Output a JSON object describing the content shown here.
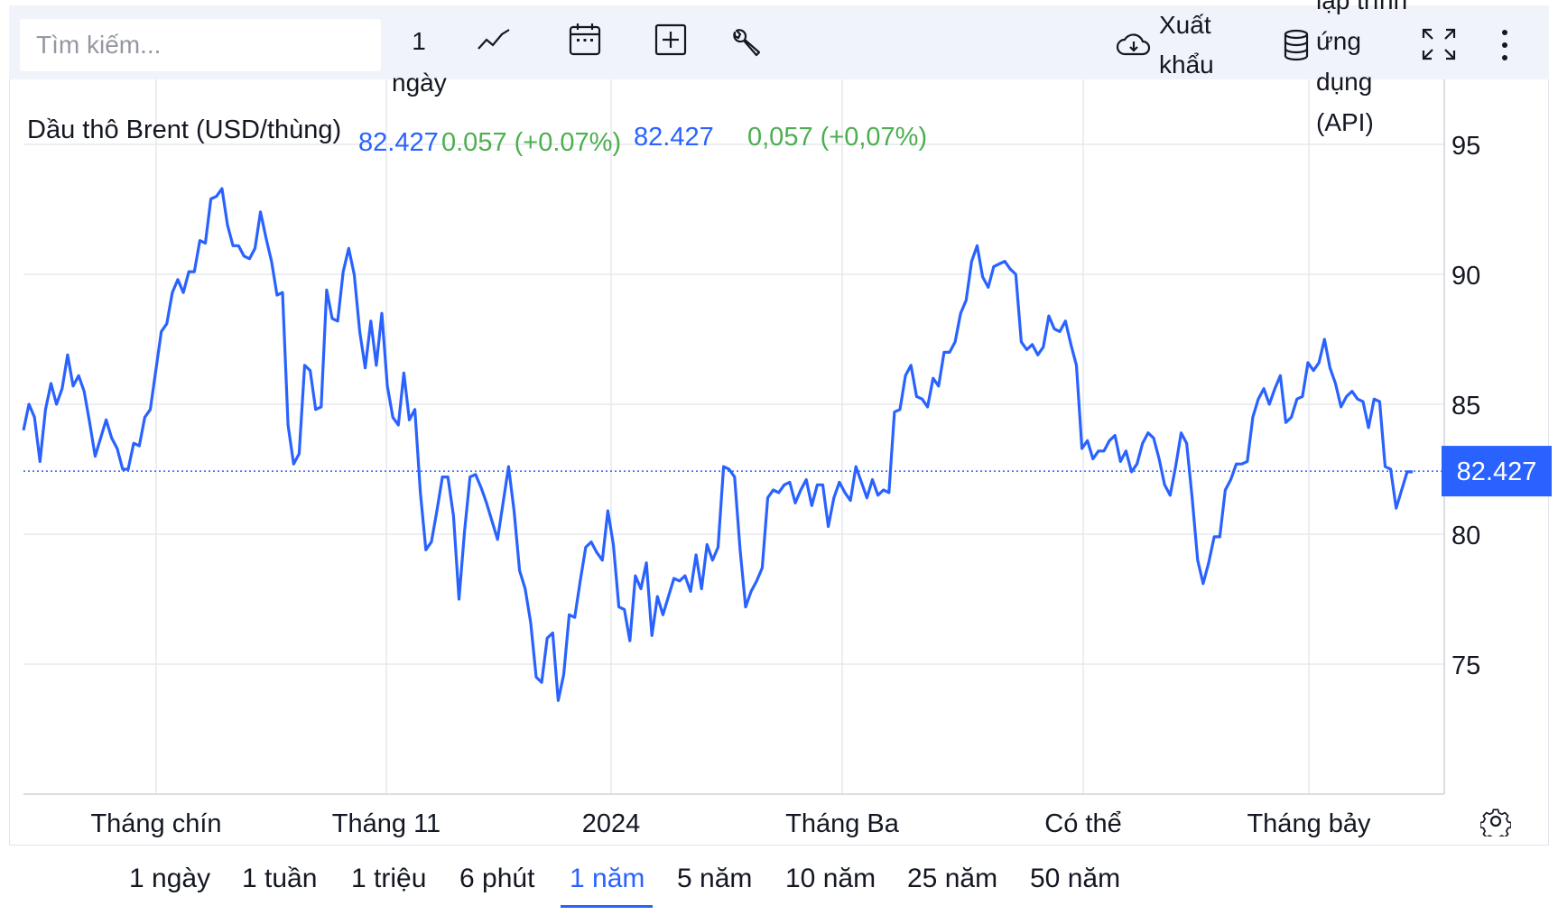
{
  "toolbar": {
    "search_placeholder": "Tìm kiếm...",
    "interval_label": "1 ngày",
    "line_icon": "line-chart-icon",
    "calendar_icon": "calendar-icon",
    "compare_icon": "plus-square-icon",
    "indicators_icon": "wrench-icon",
    "export_label": "Xuất khẩu",
    "api_label": "lập trình ứng dụng (API)",
    "fullscreen_icon": "fullscreen-icon",
    "more_icon": "more-vertical-icon"
  },
  "legend": {
    "title": "Dầu thô Brent (USD/thùng)",
    "value": "82.427",
    "change": "0.057 (+0.07%)",
    "value2": "82.427",
    "change2": "0,057 (+0,07%)"
  },
  "price_tag": "82.427",
  "ranges": [
    "1 ngày",
    "1 tuần",
    "1 triệu",
    "6 phút",
    "1 năm",
    "5 năm",
    "10 năm",
    "25 năm",
    "50 năm"
  ],
  "active_range": "1 năm",
  "settings_icon": "gear-icon",
  "colors": {
    "line": "#2962ff",
    "positive": "#4caf50",
    "accent": "#2962ff"
  },
  "chart_data": {
    "type": "line",
    "series": [
      {
        "values": [
          84.0,
          85.0,
          84.5,
          82.8,
          84.8,
          85.8,
          85.0,
          85.6,
          86.9,
          85.7,
          86.1,
          85.5,
          84.3,
          83.0,
          83.7,
          84.4,
          83.7,
          83.3,
          82.5,
          82.5,
          83.5,
          83.4,
          84.5,
          84.8,
          86.3,
          87.8,
          88.1,
          89.3,
          89.8,
          89.3,
          90.1,
          90.1,
          91.3,
          91.2,
          92.9,
          93.0,
          93.3,
          91.9,
          91.1,
          91.1,
          90.7,
          90.6,
          91.0,
          92.4,
          91.4,
          90.5,
          89.2,
          89.3,
          84.2,
          82.7,
          83.1,
          86.5,
          86.3,
          84.8,
          84.9,
          89.4,
          88.3,
          88.2,
          90.1,
          91.0,
          90.0,
          87.8,
          86.4,
          88.2,
          86.5,
          88.5,
          85.7,
          84.5,
          84.2,
          86.2,
          84.4,
          84.8,
          81.6,
          79.4,
          79.7,
          80.9,
          82.2,
          82.2,
          80.7,
          77.5,
          80.1,
          82.2,
          82.3,
          81.8,
          81.2,
          80.5,
          79.8,
          81.2,
          82.6,
          80.9,
          78.6,
          77.9,
          76.6,
          74.5,
          74.3,
          76.0,
          76.2,
          73.6,
          74.6,
          76.9,
          76.8,
          78.2,
          79.5,
          79.7,
          79.3,
          79.0,
          80.9,
          79.6,
          77.2,
          77.1,
          75.9,
          78.4,
          77.9,
          78.9,
          76.1,
          77.6,
          76.9,
          77.6,
          78.3,
          78.2,
          78.4,
          77.8,
          79.2,
          77.9,
          79.6,
          79.0,
          79.5,
          82.6,
          82.5,
          82.2,
          79.4,
          77.2,
          77.8,
          78.2,
          78.7,
          81.4,
          81.7,
          81.6,
          81.9,
          82.0,
          81.2,
          81.7,
          82.1,
          81.1,
          81.9,
          81.9,
          80.3,
          81.4,
          82.0,
          81.6,
          81.3,
          82.6,
          82.0,
          81.4,
          82.1,
          81.5,
          81.7,
          81.6,
          84.7,
          84.8,
          86.1,
          86.5,
          85.3,
          85.2,
          84.9,
          86.0,
          85.7,
          87.0,
          87.0,
          87.4,
          88.5,
          89.0,
          90.5,
          91.1,
          89.9,
          89.5,
          90.3,
          90.4,
          90.5,
          90.2,
          90.0,
          87.4,
          87.1,
          87.3,
          86.9,
          87.2,
          88.4,
          87.9,
          87.8,
          88.2,
          87.3,
          86.5,
          83.3,
          83.6,
          82.9,
          83.2,
          83.2,
          83.6,
          83.8,
          82.8,
          83.2,
          82.4,
          82.7,
          83.5,
          83.9,
          83.7,
          82.9,
          81.9,
          81.5,
          82.6,
          83.9,
          83.5,
          81.4,
          79.0,
          78.1,
          78.9,
          79.9,
          79.9,
          81.7,
          82.1,
          82.7,
          82.7,
          82.8,
          84.5,
          85.2,
          85.6,
          85.0,
          85.6,
          86.1,
          84.3,
          84.5,
          85.2,
          85.3,
          86.6,
          86.3,
          86.6,
          87.5,
          86.4,
          85.8,
          84.9,
          85.3,
          85.5,
          85.2,
          85.1,
          84.1,
          85.2,
          85.1,
          82.6,
          82.5,
          81.0,
          81.7,
          82.4,
          82.4
        ],
        "x_start": "2023-07-31",
        "x_end": "2024-08-02"
      }
    ],
    "x_ticks": [
      "Tháng chín",
      "Tháng 11",
      "2024",
      "Tháng Ba",
      "Có thể",
      "Tháng bảy"
    ],
    "y_ticks": [
      75,
      80,
      85,
      90,
      95
    ],
    "ylim": [
      70,
      97.5
    ],
    "last_value": 82.427,
    "grid": true
  }
}
